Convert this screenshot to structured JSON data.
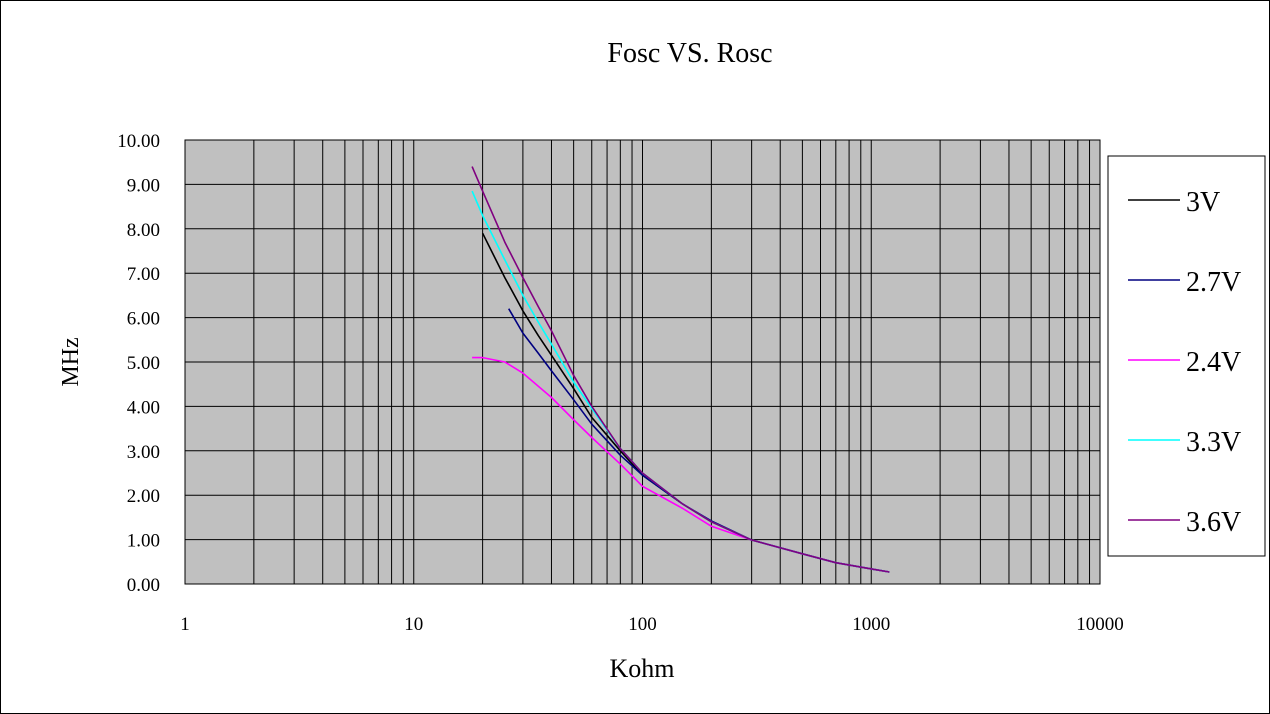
{
  "chart_data": {
    "type": "line",
    "title": "Fosc VS. Rosc",
    "xlabel": "Kohm",
    "ylabel": "MHz",
    "xscale": "log",
    "xlim": [
      1,
      10000
    ],
    "ylim": [
      0,
      10
    ],
    "x_tick_labels": [
      "1",
      "10",
      "100",
      "1000",
      "10000"
    ],
    "y_tick_labels": [
      "0.00",
      "1.00",
      "2.00",
      "3.00",
      "4.00",
      "5.00",
      "6.00",
      "7.00",
      "8.00",
      "9.00",
      "10.00"
    ],
    "grid": true,
    "legend_position": "right",
    "colors": {
      "plot_background": "#c0c0c0",
      "gridline": "#000000"
    },
    "series": [
      {
        "name": "3V",
        "color": "#000000",
        "points": [
          [
            20,
            7.9
          ],
          [
            25,
            6.9
          ],
          [
            30,
            6.15
          ],
          [
            35,
            5.6
          ],
          [
            40,
            5.15
          ],
          [
            50,
            4.4
          ],
          [
            60,
            3.75
          ],
          [
            80,
            3.0
          ],
          [
            100,
            2.45
          ],
          [
            150,
            1.8
          ],
          [
            200,
            1.4
          ],
          [
            300,
            0.99
          ],
          [
            500,
            0.68
          ],
          [
            700,
            0.48
          ],
          [
            1000,
            0.34
          ],
          [
            1200,
            0.27
          ]
        ]
      },
      {
        "name": "2.7V",
        "color": "#000080",
        "points": [
          [
            26,
            6.2
          ],
          [
            30,
            5.65
          ],
          [
            35,
            5.2
          ],
          [
            40,
            4.8
          ],
          [
            50,
            4.15
          ],
          [
            60,
            3.6
          ],
          [
            80,
            2.9
          ],
          [
            100,
            2.45
          ],
          [
            150,
            1.8
          ],
          [
            200,
            1.42
          ],
          [
            300,
            0.99
          ],
          [
            500,
            0.68
          ],
          [
            700,
            0.48
          ],
          [
            1000,
            0.34
          ],
          [
            1200,
            0.27
          ]
        ]
      },
      {
        "name": "2.4V",
        "color": "#ff00ff",
        "points": [
          [
            18,
            5.1
          ],
          [
            20,
            5.1
          ],
          [
            25,
            5.0
          ],
          [
            30,
            4.75
          ],
          [
            40,
            4.2
          ],
          [
            50,
            3.7
          ],
          [
            60,
            3.3
          ],
          [
            80,
            2.7
          ],
          [
            100,
            2.2
          ],
          [
            150,
            1.7
          ],
          [
            200,
            1.3
          ],
          [
            300,
            0.99
          ],
          [
            500,
            0.68
          ],
          [
            700,
            0.48
          ],
          [
            1000,
            0.34
          ],
          [
            1200,
            0.27
          ]
        ]
      },
      {
        "name": "3.3V",
        "color": "#00ffff",
        "points": [
          [
            18,
            8.85
          ],
          [
            20,
            8.3
          ],
          [
            25,
            7.3
          ],
          [
            30,
            6.5
          ],
          [
            35,
            5.9
          ],
          [
            40,
            5.4
          ],
          [
            50,
            4.55
          ],
          [
            60,
            3.95
          ],
          [
            80,
            3.05
          ],
          [
            100,
            2.5
          ],
          [
            150,
            1.8
          ],
          [
            200,
            1.4
          ],
          [
            300,
            0.99
          ],
          [
            500,
            0.68
          ],
          [
            700,
            0.48
          ],
          [
            1000,
            0.34
          ],
          [
            1200,
            0.27
          ]
        ]
      },
      {
        "name": "3.6V",
        "color": "#800080",
        "points": [
          [
            18,
            9.4
          ],
          [
            20,
            8.85
          ],
          [
            25,
            7.7
          ],
          [
            30,
            6.9
          ],
          [
            35,
            6.25
          ],
          [
            40,
            5.7
          ],
          [
            50,
            4.7
          ],
          [
            60,
            4.0
          ],
          [
            80,
            3.05
          ],
          [
            100,
            2.5
          ],
          [
            150,
            1.8
          ],
          [
            200,
            1.4
          ],
          [
            300,
            0.99
          ],
          [
            500,
            0.68
          ],
          [
            700,
            0.48
          ],
          [
            1000,
            0.34
          ],
          [
            1200,
            0.27
          ]
        ]
      }
    ]
  }
}
